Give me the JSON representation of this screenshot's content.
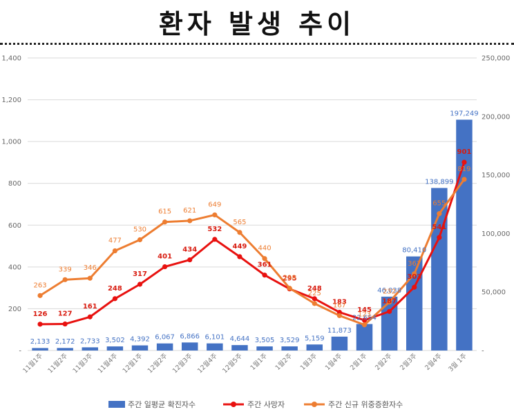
{
  "title": "환자 발생 추이",
  "chart_data": {
    "type": "bar+line",
    "categories": [
      "11월1주",
      "11월2주",
      "11월3주",
      "11월4주",
      "12월1주",
      "12월2주",
      "12월3주",
      "12월4주",
      "12월5주",
      "1월1주",
      "1월2주",
      "1월3주",
      "1월4주",
      "2월1주",
      "2월2주",
      "2월3주",
      "2월4주",
      "3월 1주"
    ],
    "left_axis": {
      "min": 0,
      "max": 1400,
      "ticks": [
        "-",
        "200",
        "400",
        "600",
        "800",
        "1,000",
        "1,200",
        "1,400"
      ]
    },
    "right_axis": {
      "min": 0,
      "max": 250000,
      "ticks": [
        "-",
        "50,000",
        "100,000",
        "150,000",
        "200,000",
        "250,000"
      ]
    },
    "series": [
      {
        "name": "주간 일평균 확진자수",
        "kind": "bar",
        "axis": "right",
        "color": "#4472C4",
        "values": [
          2133,
          2172,
          2733,
          3502,
          4392,
          6067,
          6866,
          6101,
          4644,
          3505,
          3529,
          5159,
          11873,
          22654,
          46038,
          80410,
          138899,
          197249
        ],
        "labels": [
          "2,133",
          "2,172",
          "2,733",
          "3,502",
          "4,392",
          "6,067",
          "6,866",
          "6,101",
          "4,644",
          "3,505",
          "3,529",
          "5,159",
          "11,873",
          "22,654",
          "46,038",
          "80,410",
          "138,899",
          "197,249"
        ]
      },
      {
        "name": "주간 사망자",
        "kind": "line",
        "axis": "left",
        "color": "#E8110F",
        "values": [
          126,
          127,
          161,
          248,
          317,
          401,
          434,
          532,
          449,
          361,
          295,
          248,
          183,
          145,
          187,
          303,
          541,
          901
        ],
        "labels": [
          "126",
          "127",
          "161",
          "248",
          "317",
          "401",
          "434",
          "532",
          "449",
          "361",
          "295",
          "248",
          "183",
          "145",
          "187",
          "303",
          "541",
          "901"
        ]
      },
      {
        "name": "주간 신규 위중증환자수",
        "kind": "line",
        "axis": "left",
        "color": "#ED7D31",
        "values": [
          263,
          339,
          346,
          477,
          530,
          615,
          621,
          649,
          565,
          440,
          298,
          225,
          167,
          123,
          232,
          367,
          655,
          819
        ],
        "labels": [
          "263",
          "339",
          "346",
          "477",
          "530",
          "615",
          "621",
          "649",
          "565",
          "440",
          "298",
          "225",
          "167",
          "123",
          "232",
          "367",
          "655",
          "819"
        ]
      }
    ]
  }
}
